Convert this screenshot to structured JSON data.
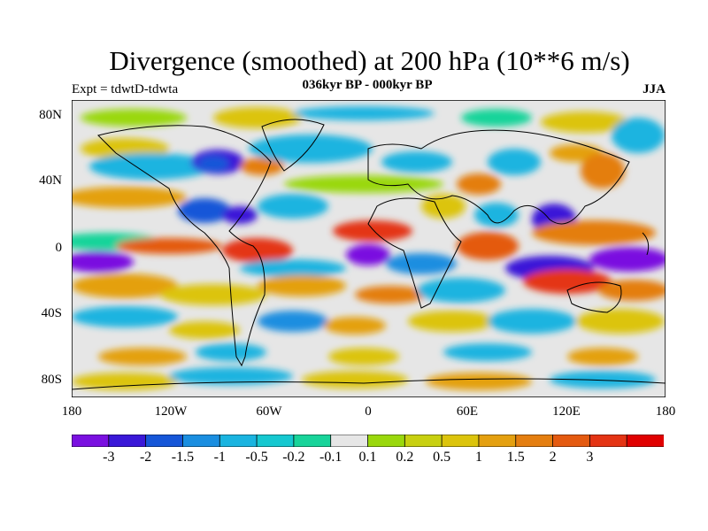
{
  "title": "Divergence (smoothed) at 200 hPa (10**6 m/s)",
  "subtitle": "036kyr BP - 000kyr BP",
  "experiment": "Expt = tdwtD-tdwta",
  "season": "JJA",
  "map": {
    "projection": "cylindrical-equidistant",
    "lon_range": [
      -180,
      180
    ],
    "lat_range": [
      -90,
      90
    ],
    "y_ticks": [
      "80N",
      "40N",
      "0",
      "40S",
      "80S"
    ],
    "x_ticks": [
      "180",
      "120W",
      "60W",
      "0",
      "60E",
      "120E",
      "180"
    ],
    "background_color": "#e6e6e6",
    "coastline_color": "#000000"
  },
  "colorbar": {
    "colors": [
      "#7a10e0",
      "#3a18d8",
      "#1656d8",
      "#1a8ee0",
      "#1ab4e0",
      "#16c8d0",
      "#18d49a",
      "#e6e6e6",
      "#9ad80c",
      "#c8d010",
      "#dcc40c",
      "#e4a010",
      "#e47e10",
      "#e45a10",
      "#e43414",
      "#e00000"
    ],
    "labels": [
      "-3",
      "-2",
      "-1.5",
      "-1",
      "-0.5",
      "-0.2",
      "-0.1",
      "0.1",
      "0.2",
      "0.5",
      "1",
      "1.5",
      "2",
      "3"
    ]
  }
}
